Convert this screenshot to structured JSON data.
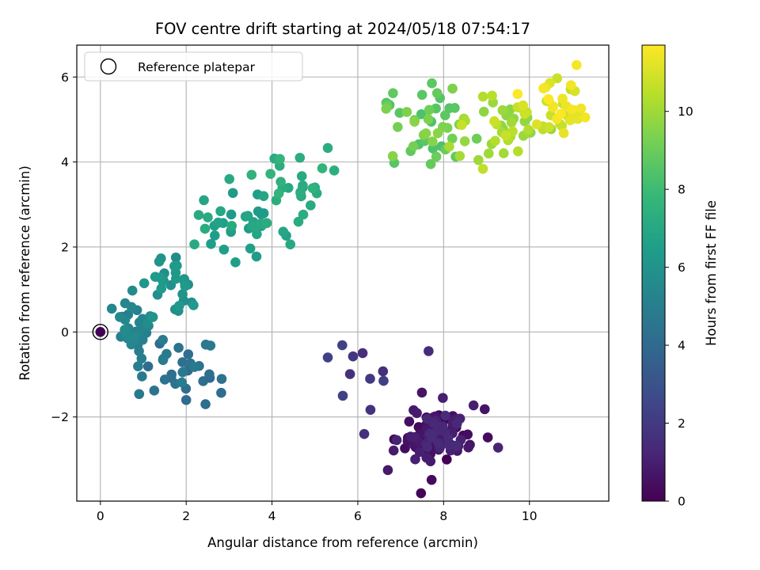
{
  "chart_data": {
    "type": "scatter",
    "title": "FOV centre drift starting at 2024/05/18 07:54:17",
    "xlabel": "Angular distance from reference (arcmin)",
    "ylabel": "Rotation from reference (arcmin)",
    "xlim": [
      -0.55,
      11.85
    ],
    "ylim": [
      -3.98,
      6.75
    ],
    "xticks": [
      0,
      2,
      4,
      6,
      8,
      10
    ],
    "yticks": [
      -2,
      0,
      2,
      4,
      6
    ],
    "ytick_labels": [
      "−2",
      "0",
      "2",
      "4",
      "6"
    ],
    "grid": true,
    "legend": {
      "placement": "top-left",
      "label": "Reference platepar"
    },
    "reference_point": {
      "x": 0,
      "y": 0
    },
    "colorbar": {
      "label": "Hours from first FF file",
      "range": [
        0,
        11.7
      ],
      "ticks": [
        0,
        2,
        4,
        6,
        8,
        10
      ],
      "colormap": "viridis",
      "stops": [
        "#440154",
        "#482878",
        "#3e4989",
        "#31688e",
        "#26828e",
        "#1f9e89",
        "#35b779",
        "#6ece58",
        "#b5de2b",
        "#fde725"
      ]
    },
    "clusters": [
      {
        "t0": 0.0,
        "t1": 1.45,
        "n": 110,
        "cx": 7.85,
        "cy": -2.45,
        "sx": 0.42,
        "sy": 0.33
      },
      {
        "t0": 1.45,
        "t1": 2.45,
        "n": 7,
        "cx": 6.2,
        "cy": -1.1,
        "sx": 0.5,
        "sy": 0.5
      },
      {
        "t0": 4.0,
        "t1": 5.0,
        "n": 30,
        "cx": 1.7,
        "cy": -0.8,
        "sx": 0.6,
        "sy": 0.45
      },
      {
        "t0": 4.9,
        "t1": 5.7,
        "n": 28,
        "cx": 0.75,
        "cy": 0.15,
        "sx": 0.25,
        "sy": 0.22
      },
      {
        "t0": 5.6,
        "t1": 6.4,
        "n": 30,
        "cx": 1.6,
        "cy": 1.05,
        "sx": 0.35,
        "sy": 0.38
      },
      {
        "t0": 6.3,
        "t1": 7.2,
        "n": 40,
        "cx": 3.2,
        "cy": 2.55,
        "sx": 0.55,
        "sy": 0.45
      },
      {
        "t0": 7.0,
        "t1": 7.7,
        "n": 22,
        "cx": 4.3,
        "cy": 3.35,
        "sx": 0.5,
        "sy": 0.4
      },
      {
        "t0": 8.3,
        "t1": 9.6,
        "n": 40,
        "cx": 7.6,
        "cy": 4.9,
        "sx": 0.6,
        "sy": 0.45
      },
      {
        "t0": 9.6,
        "t1": 10.8,
        "n": 40,
        "cx": 9.4,
        "cy": 4.85,
        "sx": 0.5,
        "sy": 0.35
      },
      {
        "t0": 10.6,
        "t1": 11.7,
        "n": 35,
        "cx": 10.6,
        "cy": 5.25,
        "sx": 0.4,
        "sy": 0.35
      }
    ],
    "points": [
      {
        "x": 7.72,
        "y": -3.48,
        "t": 0.3
      },
      {
        "x": 7.65,
        "y": -0.45,
        "t": 1.5
      },
      {
        "x": 6.7,
        "y": -3.25,
        "t": 0.8
      },
      {
        "x": 5.3,
        "y": -0.6,
        "t": 2.3
      },
      {
        "x": 5.65,
        "y": -1.5,
        "t": 2.3
      },
      {
        "x": 6.6,
        "y": -1.15,
        "t": 2.2
      },
      {
        "x": 6.15,
        "y": -2.4,
        "t": 1.6
      },
      {
        "x": 2.45,
        "y": -1.7,
        "t": 4.2
      },
      {
        "x": 1.65,
        "y": -1.08,
        "t": 4.3
      },
      {
        "x": 2.0,
        "y": -1.6,
        "t": 4.1
      },
      {
        "x": 2.55,
        "y": -1.08,
        "t": 4.0
      },
      {
        "x": 4.65,
        "y": 4.1,
        "t": 7.3
      },
      {
        "x": 5.3,
        "y": 4.33,
        "t": 7.3
      },
      {
        "x": 5.45,
        "y": 3.8,
        "t": 7.4
      },
      {
        "x": 5.0,
        "y": 3.4,
        "t": 7.2
      },
      {
        "x": 4.9,
        "y": 2.98,
        "t": 7.1
      },
      {
        "x": 6.85,
        "y": 3.98,
        "t": 8.6
      },
      {
        "x": 6.82,
        "y": 5.62,
        "t": 8.8
      },
      {
        "x": 7.85,
        "y": 5.62,
        "t": 8.9
      },
      {
        "x": 7.7,
        "y": 3.95,
        "t": 8.9
      },
      {
        "x": 9.15,
        "y": 5.4,
        "t": 9.9
      },
      {
        "x": 9.05,
        "y": 4.2,
        "t": 10.0
      },
      {
        "x": 11.1,
        "y": 6.28,
        "t": 11.6
      },
      {
        "x": 11.3,
        "y": 5.05,
        "t": 11.5
      },
      {
        "x": 10.8,
        "y": 4.68,
        "t": 11.3
      },
      {
        "x": 0.55,
        "y": -0.08,
        "t": 5.3
      },
      {
        "x": 0.9,
        "y": -0.45,
        "t": 5.0
      },
      {
        "x": 2.3,
        "y": -0.8,
        "t": 4.4
      }
    ]
  }
}
